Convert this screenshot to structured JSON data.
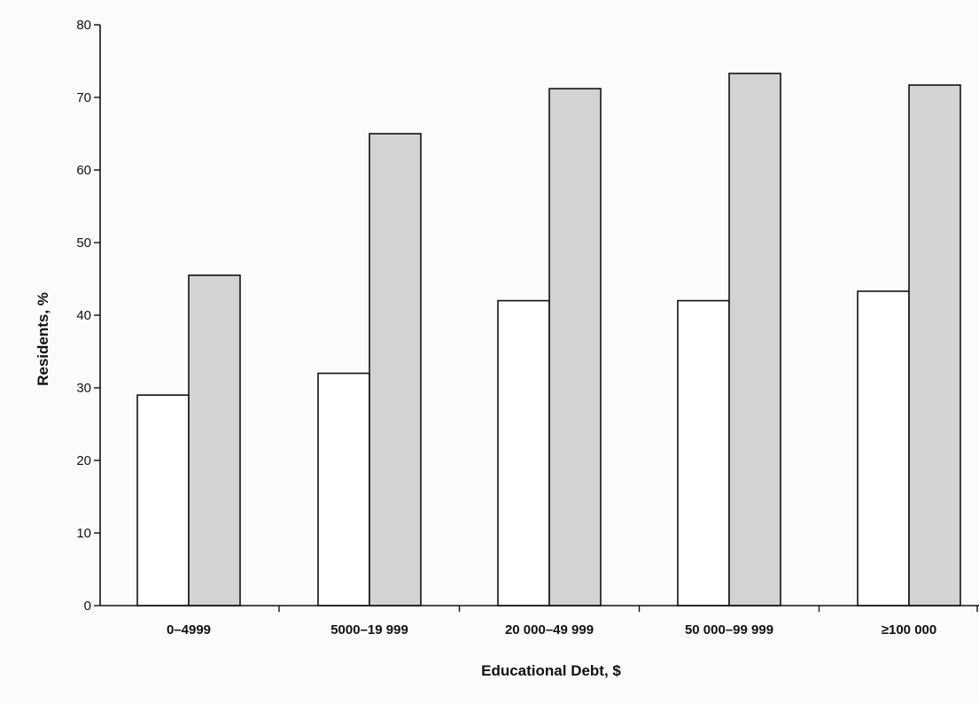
{
  "chart_data": {
    "type": "bar",
    "title": "",
    "xlabel": "Educational Debt, $",
    "ylabel": "Residents, %",
    "categories": [
      "0–4999",
      "5000–19 999",
      "20 000–49 999",
      "50 000–99 999",
      "≥100 000"
    ],
    "series": [
      {
        "values": [
          29,
          32,
          42,
          42,
          43.3
        ],
        "color": "#ffffff"
      },
      {
        "values": [
          45.5,
          65,
          71.2,
          73.3,
          71.7
        ],
        "color": "#d3d3d3"
      }
    ],
    "ylim": [
      0,
      80
    ],
    "yticks": [
      "0",
      "10",
      "20",
      "30",
      "40",
      "50",
      "60",
      "70",
      "80"
    ],
    "grid": false,
    "legend": "none"
  },
  "colors": {
    "background": "#fbfbfb",
    "axis": "#111111",
    "bar_outline": "#111111"
  }
}
